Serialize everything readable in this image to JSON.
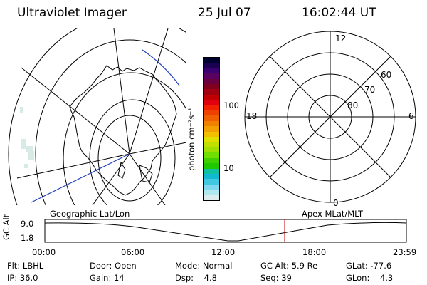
{
  "header": {
    "instrument": "Ultraviolet Imager",
    "date": "25 Jul 07",
    "time": "16:02:44 UT"
  },
  "colorbar": {
    "unit_label": "photon cm⁻²s⁻¹",
    "ticks": [
      "100",
      "10"
    ],
    "colors": [
      "#000030",
      "#1a0050",
      "#3a0070",
      "#5a0060",
      "#6a0040",
      "#800020",
      "#a00010",
      "#c00000",
      "#e00010",
      "#f02000",
      "#f04000",
      "#f06000",
      "#f08000",
      "#f0a000",
      "#f0c000",
      "#e0e000",
      "#c0e000",
      "#a0e000",
      "#70e000",
      "#40d000",
      "#20c800",
      "#10c0a0",
      "#10b8d0",
      "#40c8e0",
      "#80d8f0",
      "#b0e8f0",
      "#dcebeb"
    ]
  },
  "left_map": {
    "caption": "Geographic Lat/Lon"
  },
  "right_map": {
    "caption": "Apex MLat/MLT",
    "mlt_labels": {
      "top": "12",
      "left": "18",
      "right": "6",
      "bottom": "0"
    },
    "lat_labels": [
      "60",
      "70",
      "80"
    ]
  },
  "timeline": {
    "ylabel": "GC Alt",
    "yticks": [
      "9.0",
      "1.8"
    ],
    "xticks": [
      "00:00",
      "06:00",
      "12:00",
      "18:00",
      "23:59"
    ],
    "current_time_marker": "16:02:44"
  },
  "info": {
    "filter_label": "Flt:",
    "filter": "LBHL",
    "ip_label": "IP:",
    "ip": "36.0",
    "door_label": "Door:",
    "door": "Open",
    "gain_label": "Gain:",
    "gain": "14",
    "mode_label": "Mode:",
    "mode": "Normal",
    "dsp_label": "Dsp:",
    "dsp": "4.8",
    "gcalt_label": "GC Alt:",
    "gcalt": "5.9 Re",
    "seq_label": "Seq:",
    "seq": "39",
    "glat_label": "GLat:",
    "glat": "-77.6",
    "glon_label": "GLon:",
    "glon": "4.3"
  }
}
